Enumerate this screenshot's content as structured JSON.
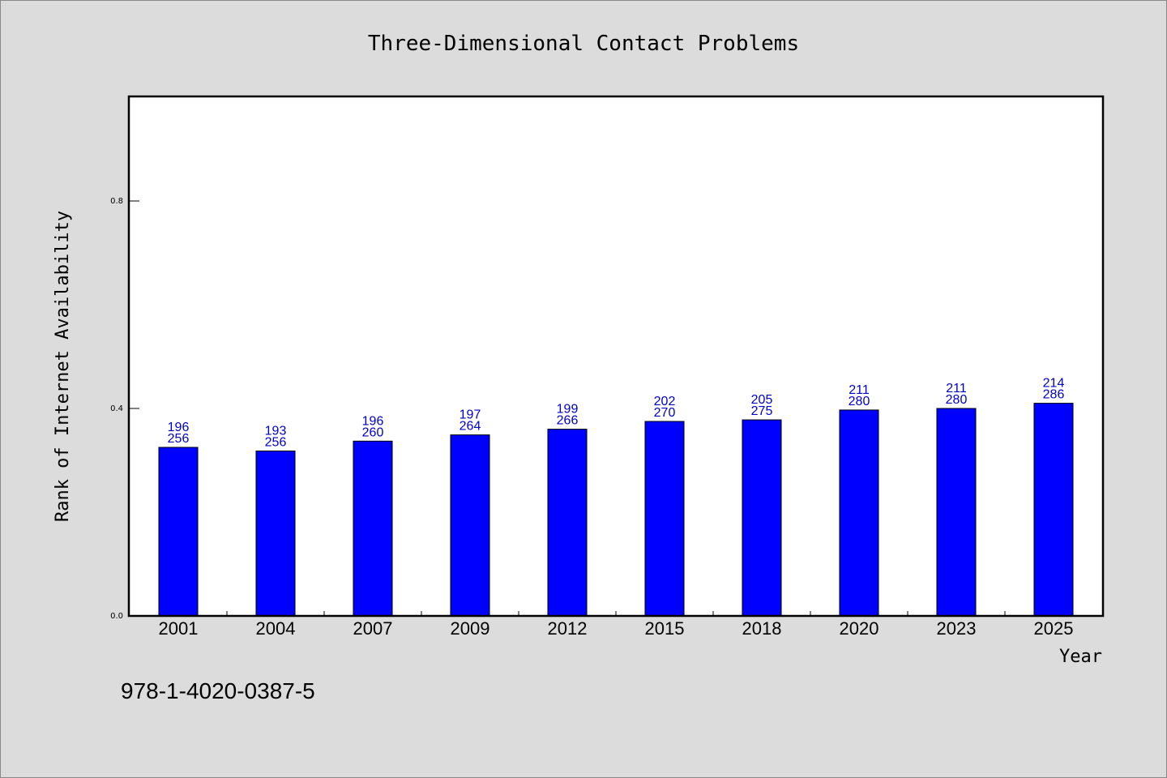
{
  "chart_data": {
    "type": "bar",
    "title": "Three-Dimensional Contact Problems",
    "xlabel": "Year",
    "ylabel": "Rank of Internet Availability",
    "categories": [
      "2001",
      "2004",
      "2007",
      "2009",
      "2012",
      "2015",
      "2018",
      "2020",
      "2023",
      "2025"
    ],
    "values": [
      0.325,
      0.318,
      0.337,
      0.349,
      0.36,
      0.375,
      0.378,
      0.397,
      0.4,
      0.41
    ],
    "data_labels": [
      [
        "196",
        "256"
      ],
      [
        "193",
        "256"
      ],
      [
        "196",
        "260"
      ],
      [
        "197",
        "264"
      ],
      [
        "199",
        "266"
      ],
      [
        "202",
        "270"
      ],
      [
        "205",
        "275"
      ],
      [
        "211",
        "280"
      ],
      [
        "211",
        "280"
      ],
      [
        "214",
        "286"
      ]
    ],
    "yticks": [
      "0.0",
      "0.4",
      "0.8"
    ],
    "ylim": [
      0,
      1.0
    ],
    "grid": false,
    "legend": "none",
    "bar_color": "#0000ff",
    "label_color": "#0000cc"
  },
  "footer": {
    "isbn": "978-1-4020-0387-5"
  }
}
